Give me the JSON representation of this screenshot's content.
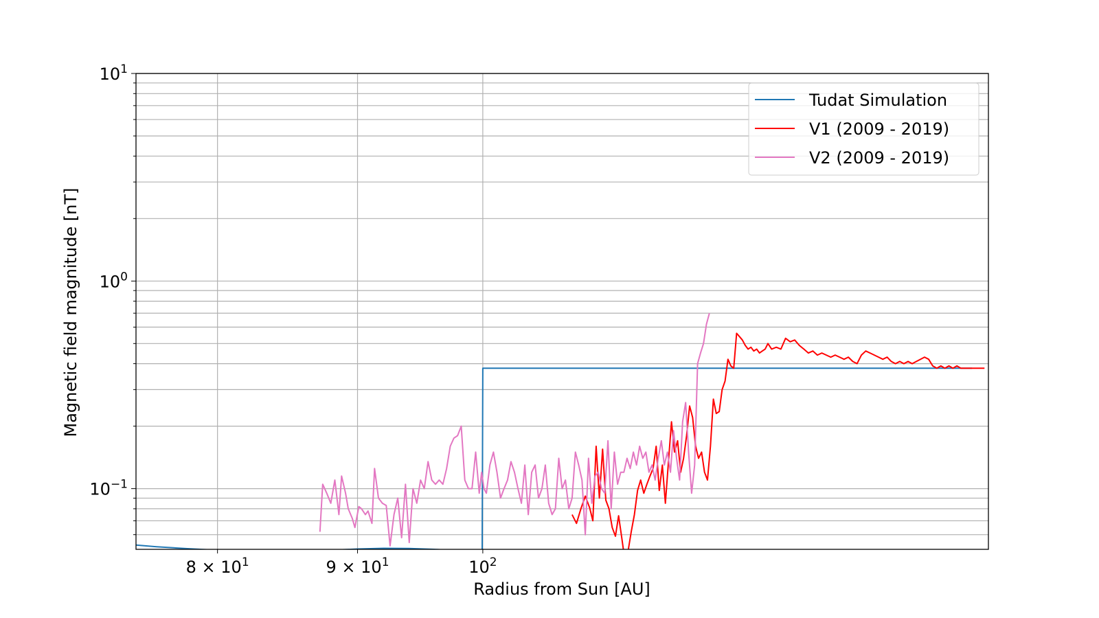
{
  "chart_data": {
    "type": "line",
    "xlabel": "Radius from Sun [AU]",
    "ylabel": "Magnetic field magnitude [nT]",
    "xscale": "log",
    "yscale": "log",
    "xlim": [
      74.7,
      153
    ],
    "ylim": [
      0.051,
      10
    ],
    "grid": true,
    "legend_position": "top-right",
    "x_ticks": [
      {
        "value": 80,
        "mantissa": "8",
        "base": "10",
        "exp": "1"
      },
      {
        "value": 90,
        "mantissa": "9",
        "base": "10",
        "exp": "1"
      },
      {
        "value": 100,
        "mantissa": "",
        "base": "10",
        "exp": "2"
      }
    ],
    "y_ticks": [
      {
        "value": 10,
        "base": "10",
        "exp": "1"
      },
      {
        "value": 1,
        "base": "10",
        "exp": "0"
      },
      {
        "value": 0.1,
        "base": "10",
        "exp": "−1"
      }
    ],
    "series": [
      {
        "name": "Tudat Simulation",
        "color": "#1f77b4",
        "x": [
          74.7,
          76,
          78,
          80,
          82,
          84,
          86,
          88,
          90,
          92,
          94,
          96,
          98,
          99.9,
          99.95,
          100,
          104,
          110,
          120,
          130,
          140,
          150.9
        ],
        "y": [
          0.0535,
          0.0525,
          0.0514,
          0.0505,
          0.0499,
          0.0496,
          0.0498,
          0.0505,
          0.0512,
          0.0516,
          0.0515,
          0.051,
          0.0502,
          0.05,
          0.051,
          0.38,
          0.38,
          0.38,
          0.38,
          0.38,
          0.38,
          0.38
        ]
      },
      {
        "name": "V1 (2009 - 2019)",
        "color": "#ff0000",
        "x": [
          107.8,
          108.2,
          108.6,
          109.0,
          109.4,
          109.7,
          110.0,
          110.3,
          110.6,
          110.9,
          111.2,
          111.5,
          111.8,
          112.1,
          112.4,
          112.7,
          113.0,
          113.3,
          113.6,
          113.9,
          114.2,
          114.5,
          114.8,
          115.1,
          115.4,
          115.7,
          116.0,
          116.3,
          116.6,
          116.9,
          117.2,
          117.5,
          117.8,
          118.1,
          118.4,
          118.7,
          119.0,
          119.3,
          119.6,
          119.9,
          120.2,
          120.5,
          120.8,
          121.1,
          121.4,
          121.7,
          122.0,
          122.3,
          122.6,
          122.9,
          123.2,
          123.5,
          123.8,
          124.1,
          124.4,
          124.7,
          125.0,
          125.3,
          125.6,
          125.9,
          126.2,
          126.5,
          126.8,
          127.1,
          127.5,
          128.0,
          128.5,
          129.0,
          129.5,
          130.0,
          130.5,
          131.0,
          131.5,
          132.0,
          132.5,
          133.0,
          133.5,
          134.0,
          134.5,
          135.0,
          135.5,
          136.0,
          136.5,
          137.0,
          137.5,
          138.0,
          138.5,
          139.0,
          139.5,
          140.0,
          140.5,
          141.0,
          141.5,
          142.0,
          142.5,
          143.0,
          143.5,
          144.0,
          144.5,
          145.0,
          145.5,
          146.0,
          146.5,
          147.0,
          147.5,
          148.0,
          148.5,
          149.0,
          149.5,
          150.0,
          150.5,
          151.0,
          151.5,
          152.0,
          152.5
        ],
        "y": [
          0.075,
          0.068,
          0.08,
          0.092,
          0.081,
          0.07,
          0.16,
          0.09,
          0.155,
          0.088,
          0.08,
          0.065,
          0.059,
          0.074,
          0.058,
          0.045,
          0.05,
          0.062,
          0.075,
          0.098,
          0.11,
          0.095,
          0.105,
          0.115,
          0.125,
          0.16,
          0.098,
          0.13,
          0.085,
          0.135,
          0.21,
          0.15,
          0.17,
          0.12,
          0.14,
          0.18,
          0.25,
          0.22,
          0.16,
          0.14,
          0.15,
          0.12,
          0.11,
          0.16,
          0.27,
          0.23,
          0.235,
          0.3,
          0.33,
          0.42,
          0.39,
          0.38,
          0.56,
          0.54,
          0.52,
          0.49,
          0.47,
          0.48,
          0.46,
          0.47,
          0.45,
          0.46,
          0.47,
          0.5,
          0.47,
          0.48,
          0.47,
          0.53,
          0.51,
          0.52,
          0.49,
          0.47,
          0.45,
          0.46,
          0.44,
          0.45,
          0.44,
          0.43,
          0.44,
          0.43,
          0.42,
          0.43,
          0.41,
          0.4,
          0.44,
          0.46,
          0.45,
          0.44,
          0.43,
          0.42,
          0.43,
          0.41,
          0.4,
          0.41,
          0.4,
          0.41,
          0.4,
          0.41,
          0.42,
          0.43,
          0.42,
          0.39,
          0.38,
          0.39,
          0.38,
          0.39,
          0.38,
          0.39,
          0.38,
          0.38,
          0.38,
          0.38,
          0.38,
          0.38,
          0.38
        ]
      },
      {
        "name": "V2 (2009 - 2019)",
        "color": "#e377c2",
        "x": [
          87.2,
          87.4,
          87.7,
          88.0,
          88.3,
          88.6,
          88.8,
          89.1,
          89.3,
          89.6,
          89.8,
          90.1,
          90.3,
          90.6,
          90.8,
          91.1,
          91.3,
          91.6,
          91.9,
          92.2,
          92.5,
          92.8,
          93.1,
          93.4,
          93.7,
          94.0,
          94.3,
          94.6,
          94.9,
          95.2,
          95.5,
          95.8,
          96.1,
          96.4,
          96.7,
          97.0,
          97.3,
          97.6,
          97.9,
          98.2,
          98.5,
          98.8,
          99.1,
          99.4,
          99.7,
          99.9,
          100.1,
          100.3,
          100.6,
          100.9,
          101.2,
          101.5,
          101.8,
          102.1,
          102.4,
          102.7,
          103.0,
          103.3,
          103.6,
          103.9,
          104.2,
          104.5,
          104.8,
          105.1,
          105.4,
          105.7,
          106.0,
          106.3,
          106.6,
          106.9,
          107.2,
          107.5,
          107.8,
          108.1,
          108.4,
          108.7,
          109.0,
          109.3,
          109.6,
          109.9,
          110.2,
          110.5,
          110.8,
          111.1,
          111.4,
          111.7,
          112.0,
          112.3,
          112.6,
          112.9,
          113.2,
          113.5,
          113.8,
          114.1,
          114.4,
          114.7,
          115.0,
          115.3,
          115.6,
          115.9,
          116.2,
          116.5,
          116.8,
          117.1,
          117.4,
          117.7,
          118.0,
          118.3,
          118.6,
          118.9,
          119.2,
          119.5,
          119.8,
          120.1,
          120.4,
          120.7,
          121.0
        ],
        "y": [
          0.062,
          0.105,
          0.095,
          0.085,
          0.11,
          0.075,
          0.115,
          0.095,
          0.08,
          0.072,
          0.065,
          0.082,
          0.08,
          0.075,
          0.078,
          0.068,
          0.125,
          0.09,
          0.085,
          0.083,
          0.053,
          0.075,
          0.09,
          0.058,
          0.105,
          0.055,
          0.1,
          0.085,
          0.11,
          0.1,
          0.135,
          0.11,
          0.105,
          0.11,
          0.105,
          0.125,
          0.16,
          0.175,
          0.18,
          0.2,
          0.11,
          0.1,
          0.1,
          0.15,
          0.095,
          0.12,
          0.1,
          0.095,
          0.13,
          0.15,
          0.12,
          0.09,
          0.1,
          0.11,
          0.135,
          0.12,
          0.1,
          0.085,
          0.13,
          0.075,
          0.12,
          0.13,
          0.09,
          0.1,
          0.13,
          0.085,
          0.075,
          0.08,
          0.14,
          0.1,
          0.11,
          0.08,
          0.09,
          0.15,
          0.13,
          0.11,
          0.06,
          0.14,
          0.085,
          0.115,
          0.12,
          0.1,
          0.095,
          0.17,
          0.08,
          0.15,
          0.105,
          0.12,
          0.12,
          0.14,
          0.125,
          0.15,
          0.13,
          0.16,
          0.14,
          0.15,
          0.12,
          0.13,
          0.11,
          0.14,
          0.17,
          0.13,
          0.15,
          0.12,
          0.19,
          0.14,
          0.11,
          0.21,
          0.26,
          0.15,
          0.095,
          0.13,
          0.4,
          0.45,
          0.5,
          0.62,
          0.7
        ]
      }
    ]
  }
}
